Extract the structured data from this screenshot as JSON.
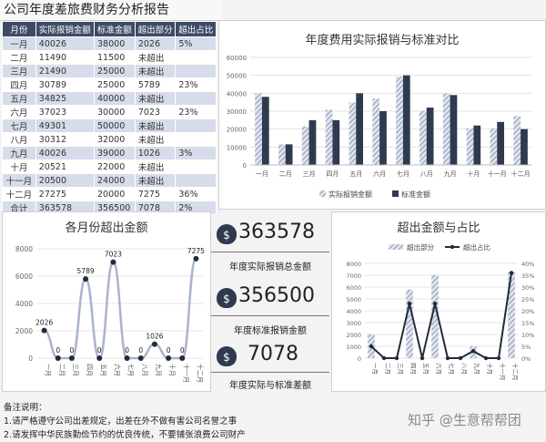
{
  "report_title": "公司年度差旅费财务分析报告",
  "table": {
    "headers": [
      "月份",
      "实际报销金额",
      "标准金额",
      "超出部分",
      "超出占比"
    ],
    "rows": [
      [
        "一月",
        "40026",
        "38000",
        "2026",
        "5%"
      ],
      [
        "二月",
        "11490",
        "11500",
        "未超出",
        ""
      ],
      [
        "三月",
        "21490",
        "25000",
        "未超出",
        ""
      ],
      [
        "四月",
        "30789",
        "25000",
        "5789",
        "23%"
      ],
      [
        "五月",
        "34825",
        "40000",
        "未超出",
        ""
      ],
      [
        "六月",
        "37023",
        "30000",
        "7023",
        "23%"
      ],
      [
        "七月",
        "49301",
        "50000",
        "未超出",
        ""
      ],
      [
        "八月",
        "30312",
        "32000",
        "未超出",
        ""
      ],
      [
        "九月",
        "40026",
        "39000",
        "1026",
        "3%"
      ],
      [
        "十月",
        "20521",
        "22000",
        "未超出",
        ""
      ],
      [
        "十一月",
        "20500",
        "24000",
        "未超出",
        ""
      ],
      [
        "十二月",
        "27275",
        "20000",
        "7275",
        "36%"
      ],
      [
        "合计",
        "363578",
        "356500",
        "7078",
        "2%"
      ]
    ]
  },
  "kpi": {
    "total_actual": "363578",
    "total_actual_label": "年度实际报销总金额",
    "total_standard": "356500",
    "total_standard_label": "年度标准报销金额",
    "difference": "7078",
    "difference_label": "年度实际与标准差额",
    "icon": "money-bag-icon"
  },
  "notes": {
    "heading": "备注说明：",
    "line1": "1.请严格遵守公司出差规定，出差在外不做有害公司名誉之事",
    "line2": "2.请发挥中华民族勤俭节约的优良传统，不要铺张浪费公司财产"
  },
  "watermark": "知乎 @生意帮帮团",
  "colors": {
    "header": "#3f4b66",
    "actual": "#a9b4cc",
    "standard": "#2f3a4f",
    "line": "#a9b4cc",
    "dark": "#222b3a"
  },
  "chart_data": [
    {
      "type": "bar",
      "title": "年度费用实际报销与标准对比",
      "categories": [
        "一月",
        "二月",
        "三月",
        "四月",
        "五月",
        "六月",
        "七月",
        "八月",
        "九月",
        "十月",
        "十一月",
        "十二月"
      ],
      "series": [
        {
          "name": "实际报销金额",
          "values": [
            40026,
            11490,
            21490,
            30789,
            34825,
            37023,
            49301,
            30312,
            40026,
            20521,
            20500,
            27275
          ]
        },
        {
          "name": "标准金额",
          "values": [
            38000,
            11500,
            25000,
            25000,
            40000,
            30000,
            50000,
            32000,
            39000,
            22000,
            24000,
            20000
          ]
        }
      ],
      "ylim": [
        0,
        60000
      ],
      "yticks": [
        "0",
        "10000",
        "20000",
        "30000",
        "40000",
        "50000",
        "60000"
      ],
      "legend": "bottom",
      "grid": true
    },
    {
      "type": "line",
      "title": "各月份超出金额",
      "categories": [
        "一月",
        "二月",
        "三月",
        "四月",
        "五月",
        "六月",
        "七月",
        "八月",
        "九月",
        "十月",
        "十一月",
        "十二月"
      ],
      "values": [
        2026,
        0,
        0,
        5789,
        0,
        7023,
        0,
        0,
        1026,
        0,
        0,
        7275
      ],
      "labels": [
        "2026",
        "0",
        "0",
        "5789",
        "0",
        "7023",
        "0",
        "0",
        "1026",
        "0",
        "0",
        "7275"
      ],
      "ylim": [
        0,
        8000
      ],
      "yticks": [
        "0",
        "2000",
        "4000",
        "6000",
        "8000"
      ],
      "grid": true
    },
    {
      "type": "bar",
      "title": "超出金额与占比",
      "categories": [
        "一月",
        "二月",
        "三月",
        "四月",
        "五月",
        "六月",
        "七月",
        "八月",
        "九月",
        "十月",
        "十一月",
        "十二月"
      ],
      "series": [
        {
          "name": "超出部分",
          "type": "bar",
          "values": [
            2026,
            0,
            0,
            5789,
            0,
            7023,
            0,
            0,
            1026,
            0,
            0,
            7275
          ]
        },
        {
          "name": "超出占比",
          "type": "line",
          "axis": "right",
          "values": [
            5,
            0,
            0,
            23,
            0,
            23,
            0,
            0,
            3,
            0,
            0,
            36
          ]
        }
      ],
      "ylim": [
        0,
        8000
      ],
      "yticks": [
        "0",
        "1000",
        "2000",
        "3000",
        "4000",
        "5000",
        "6000",
        "7000",
        "8000"
      ],
      "y2lim": [
        0,
        40
      ],
      "y2ticks": [
        "0%",
        "5%",
        "10%",
        "15%",
        "20%",
        "25%",
        "30%",
        "35%",
        "40%"
      ],
      "legend": "top",
      "grid": true
    }
  ]
}
